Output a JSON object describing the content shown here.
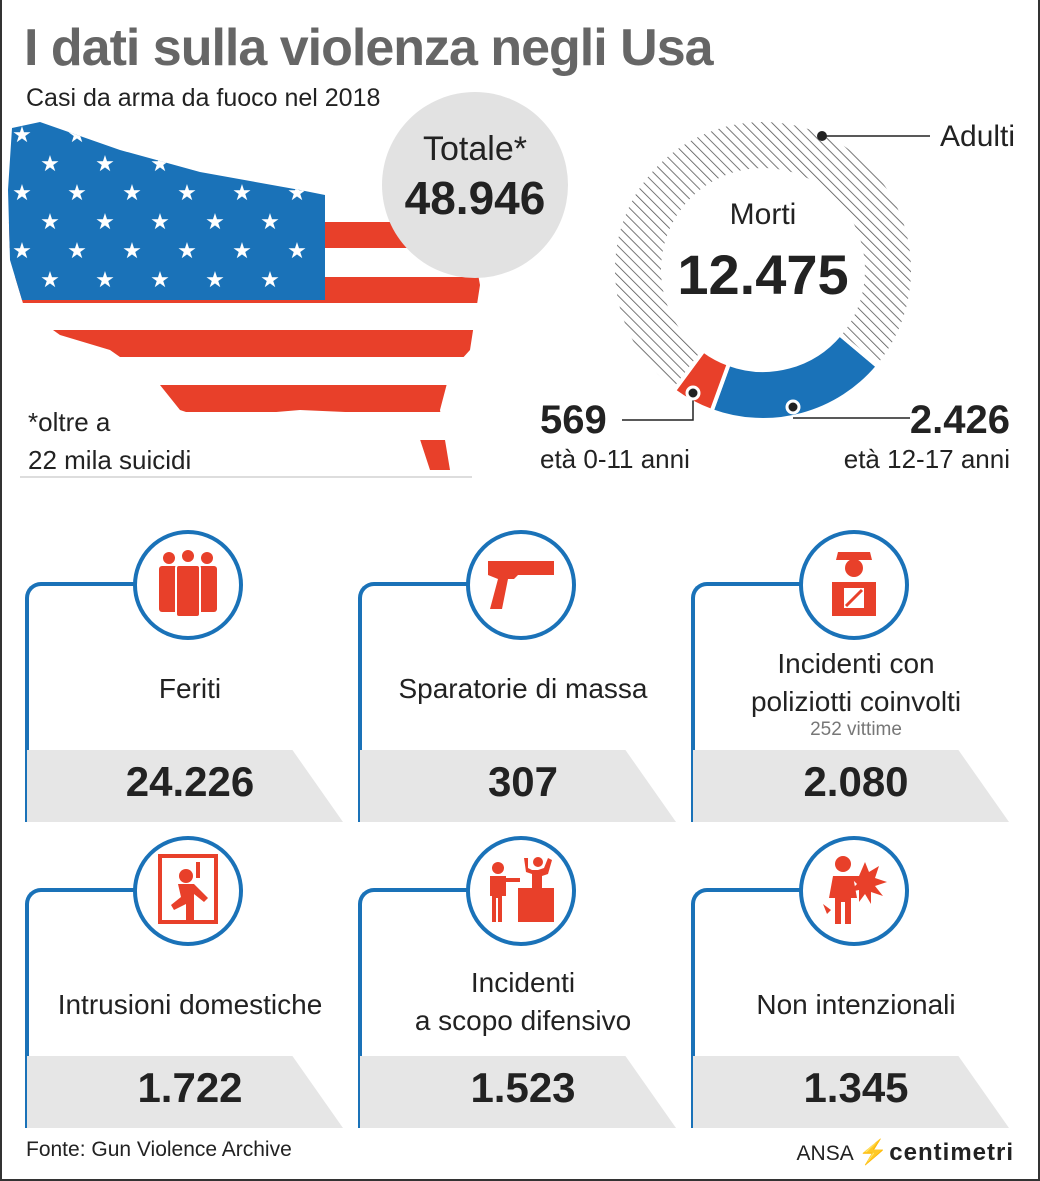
{
  "title": "I dati sulla violenza negli Usa",
  "subtitle": "Casi da arma da fuoco nel 2018",
  "total": {
    "label": "Totale*",
    "value": "48.946"
  },
  "note": {
    "line1": "*oltre a",
    "line2": "22 mila suicidi"
  },
  "deaths": {
    "label": "Morti",
    "value": "12.475",
    "adults_label": "Adulti",
    "kids": {
      "value": "569",
      "label": "età 0-11 anni"
    },
    "teens": {
      "value": "2.426",
      "label": "età 12-17 anni"
    }
  },
  "chart_data": {
    "type": "pie",
    "title": "Morti",
    "total": 12475,
    "slices": [
      {
        "name": "età 0-11 anni",
        "value": 569,
        "color": "#e8402a"
      },
      {
        "name": "età 12-17 anni",
        "value": 2426,
        "color": "#1a72b8"
      },
      {
        "name": "Adulti",
        "value": 9480,
        "color": "hatched"
      }
    ]
  },
  "cards": [
    {
      "icon": "people-icon",
      "label1": "Feriti",
      "label2": "",
      "sub": "",
      "value": "24.226"
    },
    {
      "icon": "gun-icon",
      "label1": "Sparatorie di massa",
      "label2": "",
      "sub": "",
      "value": "307"
    },
    {
      "icon": "police-officer-icon",
      "label1": "Incidenti con",
      "label2": "poliziotti coinvolti",
      "sub": "252 vittime",
      "value": "2.080"
    },
    {
      "icon": "home-intrusion-icon",
      "label1": "Intrusioni domestiche",
      "label2": "",
      "sub": "",
      "value": "1.722"
    },
    {
      "icon": "defensive-shooter-icon",
      "label1": "Incidenti",
      "label2": "a scopo difensivo",
      "sub": "",
      "value": "1.523"
    },
    {
      "icon": "accidental-shot-icon",
      "label1": "Non intenzionali",
      "label2": "",
      "sub": "",
      "value": "1.345"
    }
  ],
  "source": "Fonte: Gun Violence Archive",
  "logo": {
    "ansa": "ANSA",
    "centimetri": "centimetri"
  },
  "colors": {
    "red": "#e8402a",
    "blue": "#1a72b8",
    "gray": "#e6e6e6"
  }
}
